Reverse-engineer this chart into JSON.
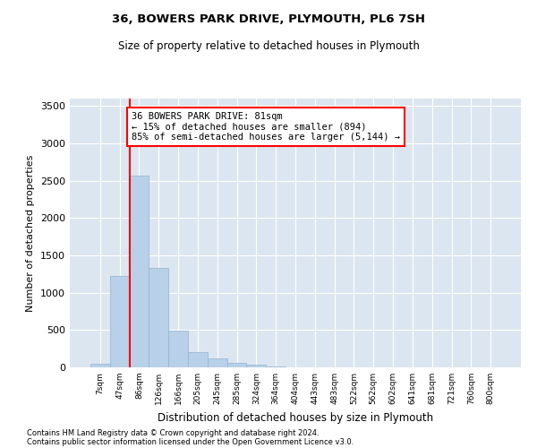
{
  "title1": "36, BOWERS PARK DRIVE, PLYMOUTH, PL6 7SH",
  "title2": "Size of property relative to detached houses in Plymouth",
  "xlabel": "Distribution of detached houses by size in Plymouth",
  "ylabel": "Number of detached properties",
  "categories": [
    "7sqm",
    "47sqm",
    "86sqm",
    "126sqm",
    "166sqm",
    "205sqm",
    "245sqm",
    "285sqm",
    "324sqm",
    "364sqm",
    "404sqm",
    "443sqm",
    "483sqm",
    "522sqm",
    "562sqm",
    "602sqm",
    "641sqm",
    "681sqm",
    "721sqm",
    "760sqm",
    "800sqm"
  ],
  "values": [
    50,
    1220,
    2570,
    1330,
    490,
    200,
    115,
    60,
    40,
    10,
    5,
    2,
    2,
    0,
    0,
    0,
    0,
    0,
    0,
    0,
    0
  ],
  "bar_color": "#b8d0e8",
  "bar_edgecolor": "#90b4d0",
  "red_line_index": 1.5,
  "annotation_line1": "36 BOWERS PARK DRIVE: 81sqm",
  "annotation_line2": "← 15% of detached houses are smaller (894)",
  "annotation_line3": "85% of semi-detached houses are larger (5,144) →",
  "ylim": [
    0,
    3600
  ],
  "yticks": [
    0,
    500,
    1000,
    1500,
    2000,
    2500,
    3000,
    3500
  ],
  "background_color": "#dce6f0",
  "footnote1": "Contains HM Land Registry data © Crown copyright and database right 2024.",
  "footnote2": "Contains public sector information licensed under the Open Government Licence v3.0."
}
